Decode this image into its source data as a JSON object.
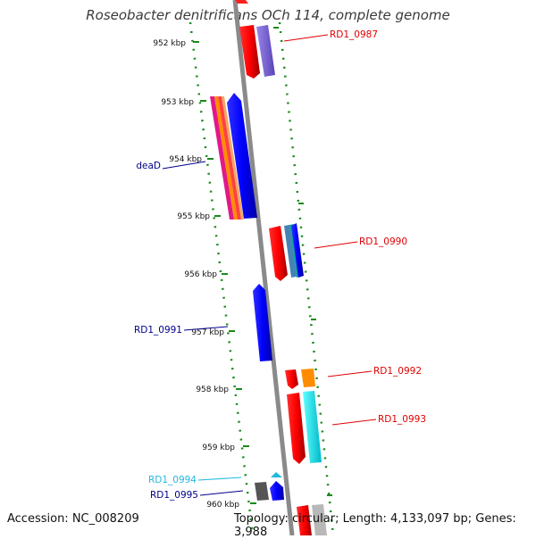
{
  "title": "Roseobacter denitrificans OCh 114, complete genome",
  "accession": "Accession: NC_008209",
  "topology": "Topology: circular; Length: 4,133,097 bp; Genes: 3,988",
  "ticks": [
    "952 kbp",
    "953 kbp",
    "954 kbp",
    "955 kbp",
    "956 kbp",
    "957 kbp",
    "958 kbp",
    "959 kbp",
    "960 kbp"
  ],
  "gene_labels": [
    {
      "name": "RD1_0987",
      "color": "#e00000"
    },
    {
      "name": "deaD",
      "color": "#00008b"
    },
    {
      "name": "RD1_0990",
      "color": "#e00000"
    },
    {
      "name": "RD1_0991",
      "color": "#00008b"
    },
    {
      "name": "RD1_0992",
      "color": "#e00000"
    },
    {
      "name": "RD1_0993",
      "color": "#e00000"
    },
    {
      "name": "RD1_0994",
      "color": "#22b8e0"
    },
    {
      "name": "RD1_0995",
      "color": "#00008b"
    }
  ],
  "colors": {
    "backbone": "#8a8a8a",
    "tick_dots": "#1a8a1a"
  }
}
